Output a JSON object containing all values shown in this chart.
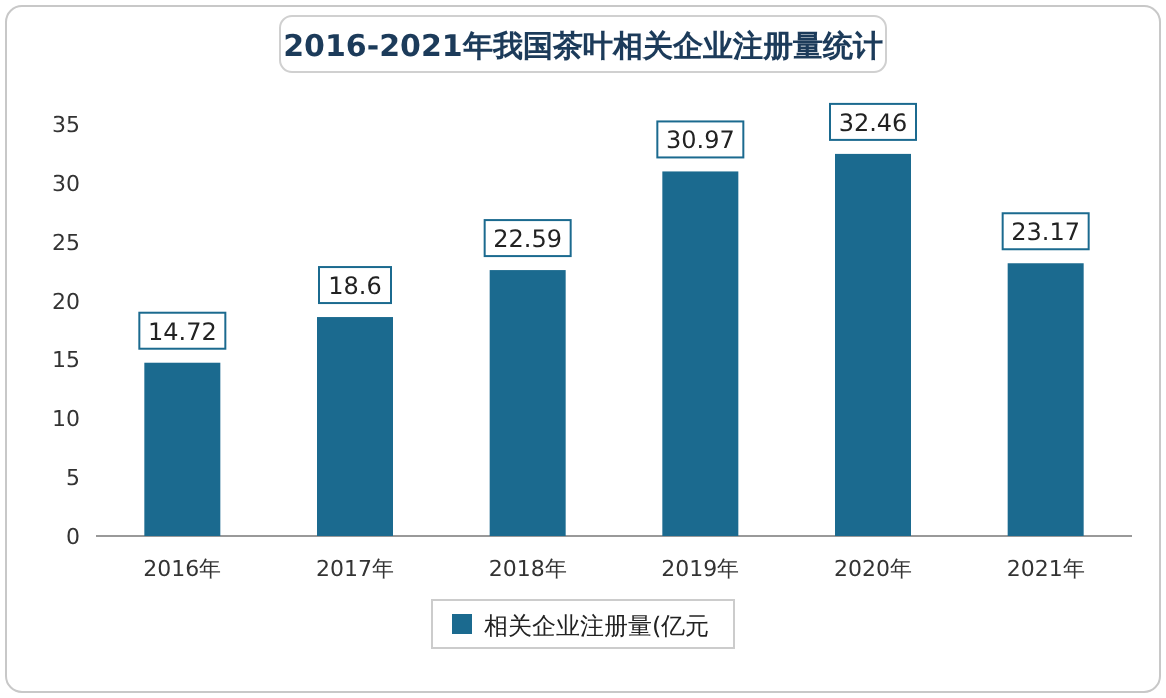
{
  "chart_data": {
    "type": "bar",
    "title": "2016-2021年我国茶叶相关企业注册量统计",
    "categories": [
      "2016年",
      "2017年",
      "2018年",
      "2019年",
      "2020年",
      "2021年"
    ],
    "series": [
      {
        "name": "相关企业注册量(亿元",
        "color": "#1b6a8f",
        "values": [
          14.72,
          18.6,
          22.59,
          30.97,
          32.46,
          23.17
        ]
      }
    ],
    "ylim": [
      0,
      35
    ],
    "yticks": [
      0,
      5,
      10,
      15,
      20,
      25,
      30,
      35
    ],
    "data_labels": true,
    "legend": "bottom"
  }
}
